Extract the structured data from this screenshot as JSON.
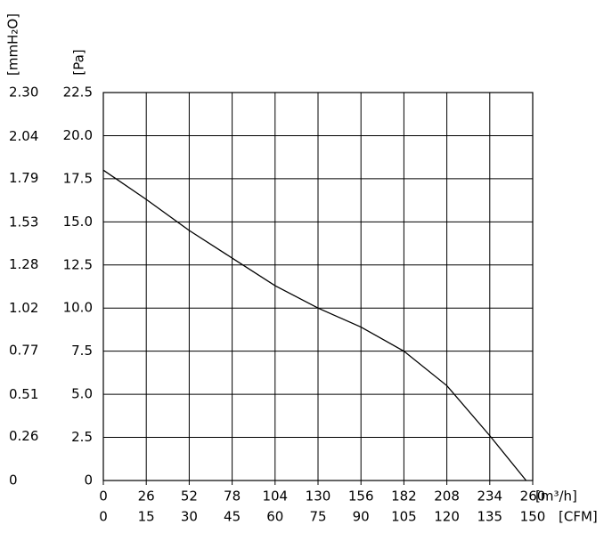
{
  "chart_data": {
    "type": "line",
    "xlabel": "[m³/h]",
    "x2label": "[CFM]",
    "ylabel": "[Pa]",
    "y2label": "[mmH₂O]",
    "x": [
      0,
      26,
      52,
      78,
      104,
      130,
      156,
      182,
      208,
      234,
      256
    ],
    "values": [
      18.0,
      16.3,
      14.5,
      12.9,
      11.3,
      10.0,
      8.9,
      7.5,
      5.5,
      2.6,
      0
    ],
    "color": "#000000",
    "xlim": [
      0,
      260
    ],
    "xticks": [
      0,
      26,
      52,
      78,
      104,
      130,
      156,
      182,
      208,
      234,
      260
    ],
    "x2lim": [
      0,
      150
    ],
    "x2ticks": [
      0,
      15,
      30,
      45,
      60,
      75,
      90,
      105,
      120,
      135,
      150
    ],
    "ylim": [
      0,
      22.5
    ],
    "yticks": [
      0,
      2.5,
      {
        "value": 5,
        "label": "5.0"
      },
      7.5,
      {
        "value": 10,
        "label": "10.0"
      },
      12.5,
      {
        "value": 15,
        "label": "15.0"
      },
      17.5,
      {
        "value": 20,
        "label": "20.0"
      },
      22.5
    ],
    "y2lim": [
      0,
      2.3
    ],
    "y2ticks": [
      0,
      0.26,
      0.51,
      0.77,
      1.02,
      1.28,
      1.53,
      1.79,
      2.04,
      {
        "value": 2.3,
        "label": "2.30"
      }
    ],
    "grid": true
  }
}
